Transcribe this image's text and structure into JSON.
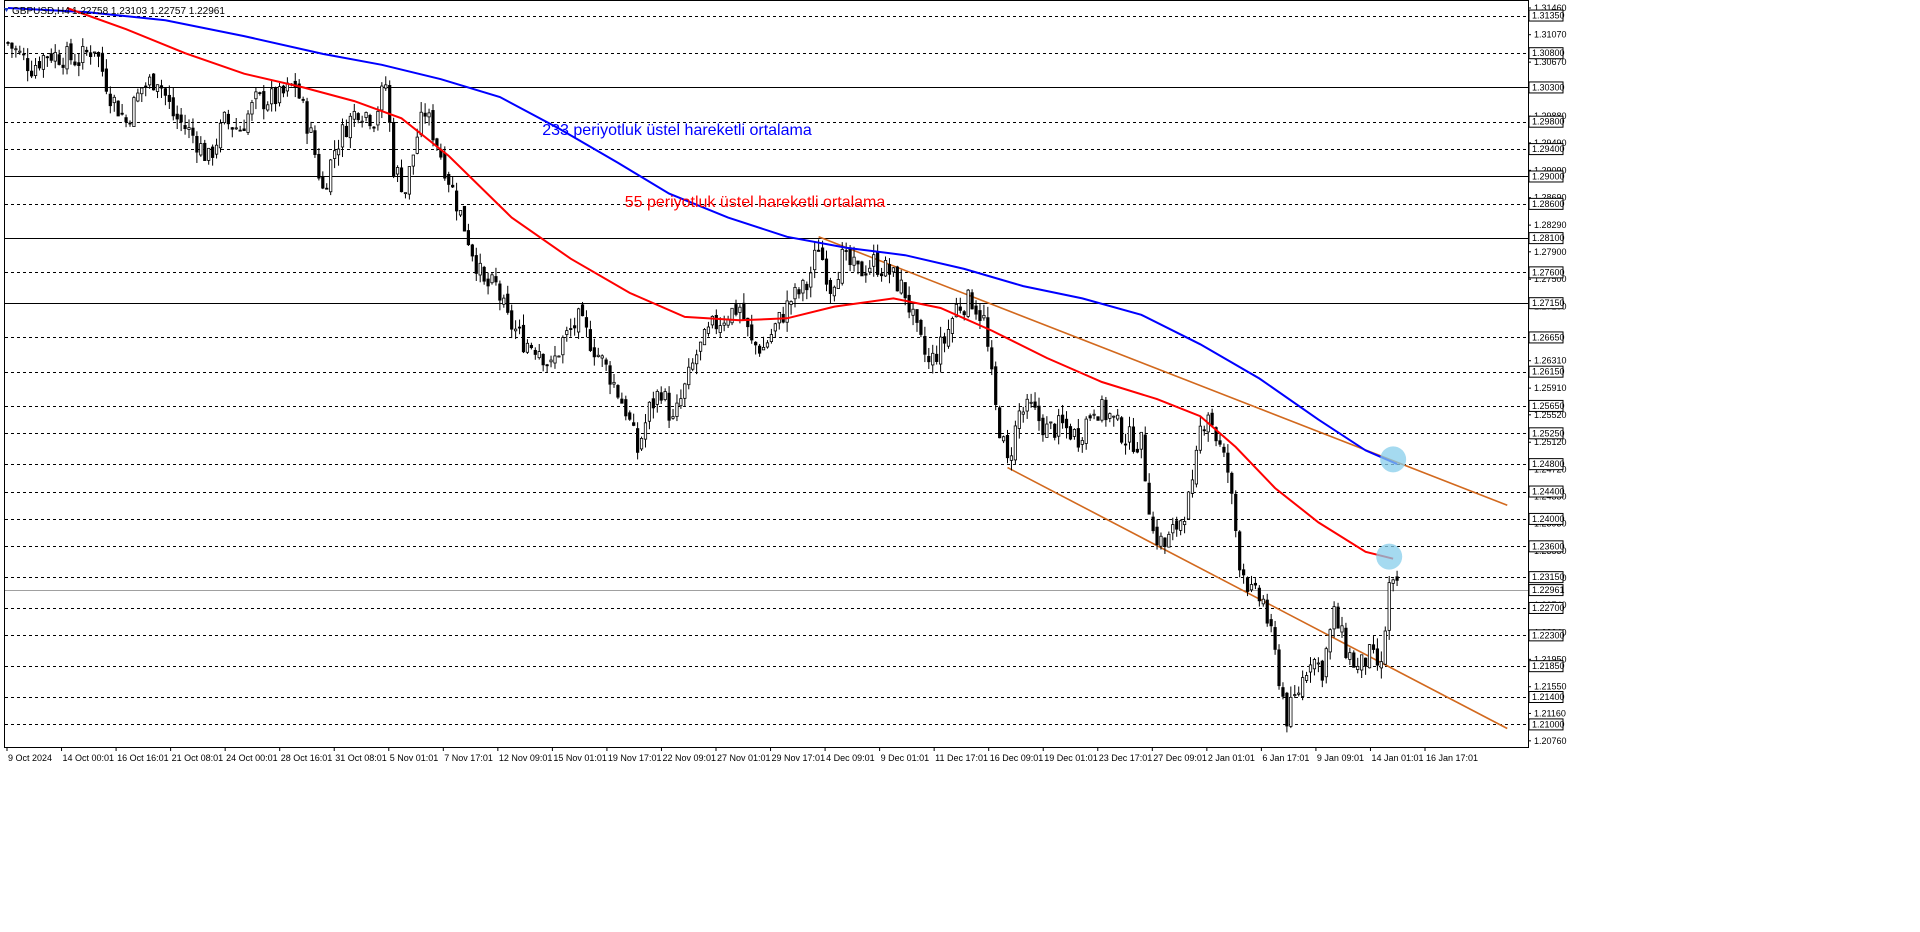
{
  "header": {
    "symbol": "GBPUSD,H4",
    "ohlc": "1.22758 1.23103 1.22757 1.22961"
  },
  "colors": {
    "background": "#ffffff",
    "candle": "#000000",
    "ema233": "#0000ff",
    "ema55": "#ff0000",
    "trendline": "#d2691e",
    "marker": "#87ceeb",
    "grid": "#000000"
  },
  "annotations": {
    "ema233_label": "233 periyotluk üstel hareketli ortalama",
    "ema55_label": "55 periyotluk üstel hareketli ortalama"
  },
  "chart_data": {
    "type": "candlestick",
    "symbol": "GBPUSD",
    "timeframe": "H4",
    "ylim": [
      1.2067,
      1.3146
    ],
    "price_axis_ticks": [
      "1.31460",
      "1.31070",
      "1.30670",
      "1.29880",
      "1.29490",
      "1.29090",
      "1.28690",
      "1.28290",
      "1.27900",
      "1.27500",
      "1.27100",
      "1.26310",
      "1.25910",
      "1.25520",
      "1.25120",
      "1.24720",
      "1.24330",
      "1.23930",
      "1.23530",
      "1.23140",
      "1.22740",
      "1.22340",
      "1.21950",
      "1.21550",
      "1.21160",
      "1.20760"
    ],
    "horizontal_levels": [
      {
        "price": 1.3135,
        "label": "1.31350",
        "style": "dashed"
      },
      {
        "price": 1.308,
        "label": "1.30800",
        "style": "dashed"
      },
      {
        "price": 1.303,
        "label": "1.30300",
        "style": "solid"
      },
      {
        "price": 1.298,
        "label": "1.29800",
        "style": "dashed"
      },
      {
        "price": 1.294,
        "label": "1.29400",
        "style": "dashed"
      },
      {
        "price": 1.29,
        "label": "1.29000",
        "style": "solid"
      },
      {
        "price": 1.286,
        "label": "1.28600",
        "style": "dashed"
      },
      {
        "price": 1.281,
        "label": "1.28100",
        "style": "solid"
      },
      {
        "price": 1.276,
        "label": "1.27600",
        "style": "dashed"
      },
      {
        "price": 1.2715,
        "label": "1.27150",
        "style": "solid"
      },
      {
        "price": 1.2665,
        "label": "1.26650",
        "style": "dashed"
      },
      {
        "price": 1.2615,
        "label": "1.26150",
        "style": "dashed"
      },
      {
        "price": 1.2565,
        "label": "1.25650",
        "style": "dashed"
      },
      {
        "price": 1.2525,
        "label": "1.25250",
        "style": "dashed"
      },
      {
        "price": 1.248,
        "label": "1.24800",
        "style": "dashed"
      },
      {
        "price": 1.244,
        "label": "1.24400",
        "style": "dashed"
      },
      {
        "price": 1.24,
        "label": "1.24000",
        "style": "dashed"
      },
      {
        "price": 1.236,
        "label": "1.23600",
        "style": "dashed"
      },
      {
        "price": 1.2315,
        "label": "1.23150",
        "style": "dashed"
      },
      {
        "price": 1.227,
        "label": "1.22700",
        "style": "dashed"
      },
      {
        "price": 1.223,
        "label": "1.22300",
        "style": "dashed"
      },
      {
        "price": 1.2185,
        "label": "1.21850",
        "style": "dashed"
      },
      {
        "price": 1.214,
        "label": "1.21400",
        "style": "dashed"
      },
      {
        "price": 1.21,
        "label": "1.21000",
        "style": "dashed"
      }
    ],
    "current_price": {
      "price": 1.22961,
      "label": "1.22961"
    },
    "time_labels": [
      "9 Oct 2024",
      "14 Oct 00:01",
      "16 Oct 16:01",
      "21 Oct 08:01",
      "24 Oct 00:01",
      "28 Oct 16:01",
      "31 Oct 08:01",
      "5 Nov 01:01",
      "7 Nov 17:01",
      "12 Nov 09:01",
      "15 Nov 01:01",
      "19 Nov 17:01",
      "22 Nov 09:01",
      "27 Nov 01:01",
      "29 Nov 17:01",
      "4 Dec 09:01",
      "9 Dec 01:01",
      "11 Dec 17:01",
      "16 Dec 09:01",
      "19 Dec 01:01",
      "23 Dec 17:01",
      "27 Dec 09:01",
      "2 Jan 01:01",
      "6 Jan 17:01",
      "9 Jan 09:01",
      "14 Jan 01:01",
      "16 Jan 17:01"
    ],
    "bar_count": 385,
    "ema233": [
      [
        0,
        1.3146
      ],
      [
        20,
        1.314
      ],
      [
        40,
        1.3128
      ],
      [
        60,
        1.3105
      ],
      [
        80,
        1.3079
      ],
      [
        95,
        1.3063
      ],
      [
        110,
        1.3042
      ],
      [
        125,
        1.3016
      ],
      [
        140,
        1.297
      ],
      [
        155,
        1.292
      ],
      [
        168,
        1.2875
      ],
      [
        183,
        1.284
      ],
      [
        198,
        1.2812
      ],
      [
        213,
        1.2796
      ],
      [
        228,
        1.2785
      ],
      [
        243,
        1.2765
      ],
      [
        258,
        1.274
      ],
      [
        273,
        1.2722
      ],
      [
        288,
        1.2698
      ],
      [
        303,
        1.2655
      ],
      [
        318,
        1.2605
      ],
      [
        333,
        1.2545
      ],
      [
        345,
        1.25
      ],
      [
        353,
        1.248
      ]
    ],
    "ema55": [
      [
        15,
        1.3146
      ],
      [
        30,
        1.3115
      ],
      [
        45,
        1.308
      ],
      [
        60,
        1.305
      ],
      [
        75,
        1.303
      ],
      [
        88,
        1.301
      ],
      [
        100,
        1.2985
      ],
      [
        112,
        1.293
      ],
      [
        128,
        1.284
      ],
      [
        143,
        1.278
      ],
      [
        158,
        1.273
      ],
      [
        172,
        1.2695
      ],
      [
        186,
        1.269
      ],
      [
        198,
        1.2693
      ],
      [
        210,
        1.271
      ],
      [
        225,
        1.2722
      ],
      [
        237,
        1.2708
      ],
      [
        250,
        1.2675
      ],
      [
        264,
        1.2635
      ],
      [
        278,
        1.26
      ],
      [
        292,
        1.2575
      ],
      [
        303,
        1.255
      ],
      [
        312,
        1.2505
      ],
      [
        322,
        1.2445
      ],
      [
        333,
        1.2395
      ],
      [
        345,
        1.2352
      ],
      [
        352,
        1.2342
      ]
    ],
    "trendlines": [
      {
        "from": [
          206,
          1.2812
        ],
        "to": [
          381,
          1.242
        ]
      },
      {
        "from": [
          254,
          1.2475
        ],
        "to": [
          381,
          1.2094
        ]
      }
    ],
    "markers": [
      {
        "bar": 352,
        "price": 1.2487
      },
      {
        "bar": 351,
        "price": 1.2345
      }
    ],
    "segments": [
      [
        0,
        1.3095
      ],
      [
        6,
        1.306
      ],
      [
        10,
        1.308
      ],
      [
        18,
        1.307
      ],
      [
        22,
        1.309
      ],
      [
        26,
        1.302
      ],
      [
        30,
        1.298
      ],
      [
        34,
        1.303
      ],
      [
        38,
        1.3045
      ],
      [
        42,
        1.299
      ],
      [
        47,
        1.296
      ],
      [
        51,
        1.2925
      ],
      [
        55,
        1.298
      ],
      [
        59,
        1.297
      ],
      [
        63,
        1.301
      ],
      [
        69,
        1.3015
      ],
      [
        73,
        1.3035
      ],
      [
        77,
        1.296
      ],
      [
        80,
        1.288
      ],
      [
        83,
        1.294
      ],
      [
        86,
        1.2975
      ],
      [
        89,
        1.3
      ],
      [
        93,
        1.2985
      ],
      [
        96,
        1.3035
      ],
      [
        98,
        1.2915
      ],
      [
        101,
        1.288
      ],
      [
        104,
        1.296
      ],
      [
        106,
        1.2995
      ],
      [
        109,
        1.295
      ],
      [
        113,
        1.288
      ],
      [
        117,
        1.281
      ],
      [
        121,
        1.274
      ],
      [
        124,
        1.274
      ],
      [
        127,
        1.269
      ],
      [
        131,
        1.266
      ],
      [
        135,
        1.265
      ],
      [
        138,
        1.262
      ],
      [
        141,
        1.266
      ],
      [
        145,
        1.269
      ],
      [
        149,
        1.265
      ],
      [
        153,
        1.261
      ],
      [
        157,
        1.256
      ],
      [
        160,
        1.25
      ],
      [
        163,
        1.256
      ],
      [
        166,
        1.259
      ],
      [
        169,
        1.254
      ],
      [
        172,
        1.259
      ],
      [
        175,
        1.264
      ],
      [
        179,
        1.268
      ],
      [
        183,
        1.27
      ],
      [
        186,
        1.271
      ],
      [
        189,
        1.2655
      ],
      [
        192,
        1.265
      ],
      [
        196,
        1.269
      ],
      [
        199,
        1.272
      ],
      [
        203,
        1.274
      ],
      [
        206,
        1.28
      ],
      [
        209,
        1.274
      ],
      [
        212,
        1.278
      ],
      [
        216,
        1.276
      ],
      [
        220,
        1.2775
      ],
      [
        224,
        1.276
      ],
      [
        228,
        1.273
      ],
      [
        231,
        1.267
      ],
      [
        234,
        1.2625
      ],
      [
        238,
        1.266
      ],
      [
        241,
        1.271
      ],
      [
        245,
        1.272
      ],
      [
        248,
        1.269
      ],
      [
        251,
        1.256
      ],
      [
        254,
        1.248
      ],
      [
        257,
        1.2555
      ],
      [
        260,
        1.256
      ],
      [
        264,
        1.253
      ],
      [
        268,
        1.2535
      ],
      [
        272,
        1.252
      ],
      [
        276,
        1.2565
      ],
      [
        280,
        1.255
      ],
      [
        284,
        1.252
      ],
      [
        288,
        1.251
      ],
      [
        291,
        1.238
      ],
      [
        294,
        1.236
      ],
      [
        298,
        1.24
      ],
      [
        301,
        1.244
      ],
      [
        303,
        1.253
      ],
      [
        305,
        1.256
      ],
      [
        307,
        1.252
      ],
      [
        310,
        1.247
      ],
      [
        313,
        1.234
      ],
      [
        316,
        1.229
      ],
      [
        319,
        1.228
      ],
      [
        322,
        1.22
      ],
      [
        325,
        1.211
      ],
      [
        328,
        1.215
      ],
      [
        331,
        1.22
      ],
      [
        334,
        1.218
      ],
      [
        337,
        1.226
      ],
      [
        340,
        1.221
      ],
      [
        343,
        1.218
      ],
      [
        346,
        1.22
      ],
      [
        349,
        1.218
      ],
      [
        351,
        1.23
      ],
      [
        353,
        1.2296
      ]
    ],
    "last_candle": {
      "open": 1.22758,
      "high": 1.23103,
      "low": 1.22757,
      "close": 1.22961
    }
  }
}
